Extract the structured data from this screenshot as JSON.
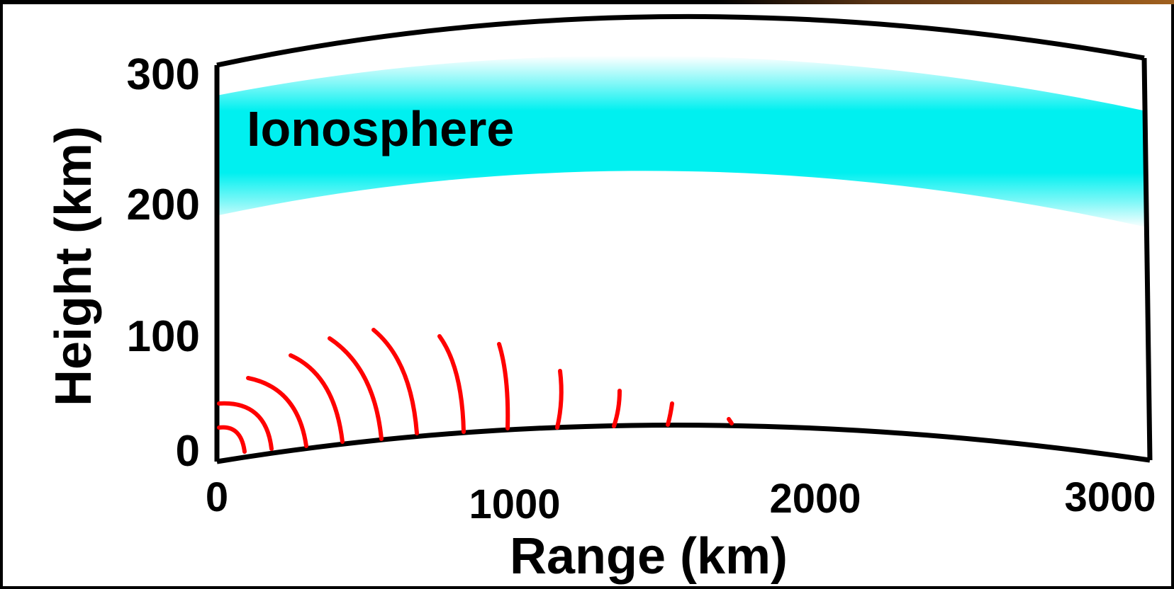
{
  "diagram": {
    "layer_label": "Ionosphere",
    "x_axis": {
      "label": "Range (km)",
      "ticks": [
        "0",
        "1000",
        "2000",
        "3000"
      ]
    },
    "y_axis": {
      "label": "Height (km)",
      "ticks": [
        "300",
        "200",
        "100",
        "0"
      ]
    },
    "colors": {
      "ionosphere": "#00f0f0",
      "wavefronts": "#ff0000",
      "outline": "#000000",
      "background": "#ffffff"
    }
  }
}
